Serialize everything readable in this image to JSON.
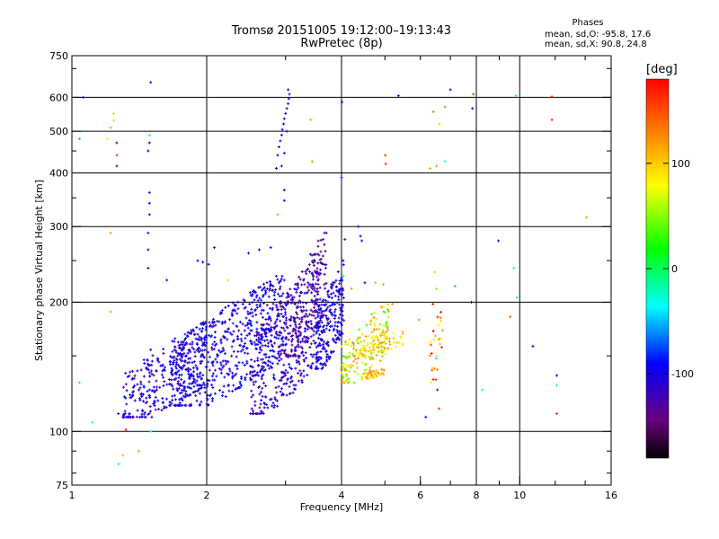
{
  "chart_data": {
    "type": "scatter",
    "title": "Tromsø 20151005 19:12:00–19:13:43",
    "subtitle": "RwPretec (8p)",
    "phases": {
      "heading": "Phases",
      "o_line": "mean, sd,O:  -95.8, 17.6",
      "x_line": "mean, sd,X:  90.8, 24.8"
    },
    "xlabel": "Frequency [MHz]",
    "ylabel": "Stationary phase Virtual Height [km]",
    "x_scale": "log",
    "y_scale": "log",
    "xlim": [
      1,
      16
    ],
    "ylim": [
      75,
      750
    ],
    "x_ticks": [
      1,
      2,
      4,
      6,
      8,
      10,
      16
    ],
    "x_tick_labels": [
      "1",
      "2",
      "4",
      "6",
      "8",
      "10",
      "16"
    ],
    "x_gridlines": [
      2,
      4,
      8,
      10
    ],
    "y_ticks": [
      75,
      100,
      200,
      300,
      400,
      500,
      600,
      750
    ],
    "y_tick_labels": [
      "75",
      "100",
      "200",
      "300",
      "400",
      "500",
      "600",
      "750"
    ],
    "y_gridlines": [
      100,
      200,
      300,
      400,
      500,
      600
    ],
    "grid": true,
    "colorbar": {
      "label": "[deg]",
      "range": [
        -180,
        180
      ],
      "ticks": [
        100,
        0,
        -100
      ],
      "tick_labels": [
        "100",
        "0",
        "-100"
      ],
      "colormap": "rainbow"
    },
    "points": [
      [
        1.06,
        600,
        -95
      ],
      [
        1.04,
        480,
        -50
      ],
      [
        1.04,
        130,
        -20
      ],
      [
        1.11,
        105,
        -30
      ],
      [
        1.27,
        84,
        -30
      ],
      [
        1.27,
        110,
        -100
      ],
      [
        1.26,
        415,
        -130
      ],
      [
        1.26,
        470,
        -140
      ],
      [
        1.24,
        550,
        55
      ],
      [
        1.24,
        530,
        60
      ],
      [
        1.22,
        510,
        30
      ],
      [
        1.2,
        480,
        70
      ],
      [
        1.26,
        440,
        160
      ],
      [
        1.32,
        101,
        170
      ],
      [
        1.41,
        90,
        120
      ],
      [
        1.3,
        88,
        110
      ],
      [
        1.5,
        100,
        -40
      ],
      [
        1.5,
        650,
        -95
      ],
      [
        1.49,
        360,
        -100
      ],
      [
        1.49,
        340,
        -95
      ],
      [
        1.49,
        320,
        -100
      ],
      [
        1.48,
        290,
        -100
      ],
      [
        1.48,
        265,
        -100
      ],
      [
        1.48,
        240,
        -100
      ],
      [
        1.49,
        490,
        -30
      ],
      [
        1.48,
        450,
        -100
      ],
      [
        1.49,
        470,
        -100
      ],
      [
        1.22,
        290,
        120
      ],
      [
        1.22,
        190,
        120
      ],
      [
        1.5,
        155,
        -95
      ],
      [
        1.63,
        225,
        -100
      ],
      [
        1.96,
        248,
        -100
      ],
      [
        2.02,
        245,
        -100
      ],
      [
        1.91,
        250,
        -100
      ],
      [
        2.08,
        268,
        -100
      ],
      [
        2.23,
        225,
        60
      ],
      [
        2.48,
        260,
        -95
      ],
      [
        2.62,
        265,
        -100
      ],
      [
        2.78,
        268,
        -95
      ],
      [
        2.86,
        230,
        -100
      ],
      [
        2.98,
        225,
        -110
      ],
      [
        3.02,
        205,
        -100
      ],
      [
        3.31,
        210,
        -100
      ],
      [
        2.88,
        320,
        120
      ],
      [
        2.98,
        365,
        -100
      ],
      [
        2.98,
        345,
        -100
      ],
      [
        2.86,
        410,
        -95
      ],
      [
        2.88,
        440,
        -95
      ],
      [
        2.9,
        460,
        -100
      ],
      [
        2.92,
        475,
        -95
      ],
      [
        2.94,
        490,
        -100
      ],
      [
        2.95,
        505,
        -100
      ],
      [
        2.97,
        520,
        -95
      ],
      [
        2.98,
        535,
        -100
      ],
      [
        3.0,
        550,
        -95
      ],
      [
        3.02,
        565,
        -100
      ],
      [
        3.04,
        580,
        -110
      ],
      [
        3.05,
        595,
        -100
      ],
      [
        3.06,
        610,
        -130
      ],
      [
        3.04,
        625,
        -110
      ],
      [
        2.94,
        415,
        -100
      ],
      [
        2.98,
        445,
        -100
      ],
      [
        3.02,
        500,
        -95
      ],
      [
        3.41,
        532,
        115
      ],
      [
        3.44,
        425,
        120
      ],
      [
        4.01,
        585,
        -100
      ],
      [
        4.0,
        390,
        -100
      ],
      [
        4.04,
        230,
        -20
      ],
      [
        4.07,
        280,
        -80
      ],
      [
        4.36,
        300,
        -100
      ],
      [
        4.41,
        285,
        -95
      ],
      [
        4.44,
        278,
        -100
      ],
      [
        4.21,
        215,
        120
      ],
      [
        4.51,
        222,
        -100
      ],
      [
        4.76,
        222,
        110
      ],
      [
        4.96,
        220,
        120
      ],
      [
        5.2,
        198,
        120
      ],
      [
        5.36,
        605,
        -100
      ],
      [
        5.01,
        440,
        160
      ],
      [
        5.02,
        420,
        160
      ],
      [
        5.96,
        182,
        120
      ],
      [
        6.17,
        108,
        -100
      ],
      [
        6.31,
        410,
        115
      ],
      [
        6.41,
        555,
        130
      ],
      [
        6.4,
        198,
        170
      ],
      [
        6.46,
        235,
        100
      ],
      [
        6.52,
        215,
        50
      ],
      [
        6.51,
        148,
        -40
      ],
      [
        6.45,
        140,
        120
      ],
      [
        6.5,
        132,
        160
      ],
      [
        6.55,
        125,
        -140
      ],
      [
        6.6,
        113,
        160
      ],
      [
        6.73,
        172,
        120
      ],
      [
        6.81,
        570,
        130
      ],
      [
        6.81,
        425,
        -30
      ],
      [
        7.0,
        625,
        -100
      ],
      [
        7.17,
        218,
        -50
      ],
      [
        7.88,
        610,
        160
      ],
      [
        7.84,
        565,
        -100
      ],
      [
        8.26,
        125,
        -30
      ],
      [
        8.96,
        278,
        -100
      ],
      [
        9.8,
        605,
        -40
      ],
      [
        9.86,
        205,
        -30
      ],
      [
        9.7,
        240,
        -30
      ],
      [
        10.7,
        158,
        -100
      ],
      [
        11.8,
        602,
        160
      ],
      [
        11.8,
        532,
        160
      ],
      [
        12.1,
        135,
        -100
      ],
      [
        12.1,
        128,
        -20
      ],
      [
        12.1,
        110,
        160
      ],
      [
        14.1,
        315,
        120
      ],
      [
        6.52,
        415,
        120
      ],
      [
        6.61,
        520,
        60
      ],
      [
        7.8,
        200,
        -100
      ],
      [
        9.52,
        185,
        140
      ]
    ],
    "clusters": [
      {
        "name": "",
        "n": 300,
        "f": [
          1.3,
          2.0
        ],
        "h": [
          108,
          175
        ],
        "phase": [
          -130,
          -85
        ]
      },
      {
        "name": "",
        "n": 600,
        "f": [
          1.65,
          3.0
        ],
        "h": [
          115,
          230
        ],
        "phase": [
          -125,
          -80
        ]
      },
      {
        "name": "",
        "n": 350,
        "f": [
          2.5,
          3.6
        ],
        "h": [
          110,
          250
        ],
        "phase": [
          -135,
          -90
        ]
      },
      {
        "name": "",
        "n": 200,
        "f": [
          3.0,
          3.7
        ],
        "h": [
          150,
          290
        ],
        "phase": [
          -150,
          -105
        ]
      },
      {
        "name": "",
        "n": 220,
        "f": [
          3.5,
          4.05
        ],
        "h": [
          140,
          250
        ],
        "phase": [
          -125,
          -85
        ]
      },
      {
        "name": "",
        "n": 160,
        "f": [
          4.0,
          5.1
        ],
        "h": [
          130,
          200
        ],
        "phase": [
          30,
          130
        ]
      },
      {
        "name": "",
        "n": 70,
        "f": [
          4.4,
          5.5
        ],
        "h": [
          150,
          175
        ],
        "phase": [
          70,
          125
        ]
      },
      {
        "name": "",
        "n": 40,
        "f": [
          4.4,
          5.0
        ],
        "h": [
          132,
          140
        ],
        "phase": [
          80,
          125
        ]
      },
      {
        "name": "",
        "n": 25,
        "f": [
          6.3,
          6.7
        ],
        "h": [
          130,
          200
        ],
        "phase": [
          40,
          180
        ]
      }
    ]
  }
}
